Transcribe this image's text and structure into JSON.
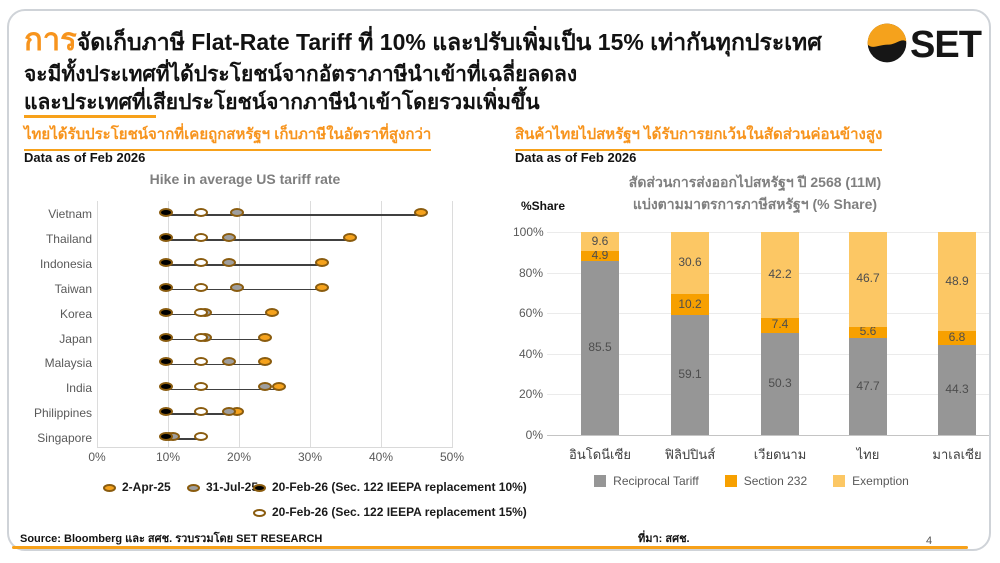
{
  "header": {
    "title_prefix": "การ",
    "title_rest": "จัดเก็บภาษี Flat-Rate Tariff ที่ 10% และปรับเพิ่มเป็น 15% เท่ากันทุกประเทศ",
    "subtitle_line1": "จะมีทั้งประเทศที่ได้ประโยชน์จากอัตราภาษีนำเข้าที่เฉลี่ยลดลง",
    "subtitle_line2": "และประเทศที่เสียประโยชน์จากภาษีนำเข้าโดยรวมเพิ่มขึ้น",
    "logo_text": "SET"
  },
  "left_panel": {
    "header": "ไทยได้รับประโยชน์จากที่เคยถูกสหรัฐฯ เก็บภาษีในอัตราที่สูงกว่า",
    "data_as_of": "Data as of Feb 2026"
  },
  "right_panel": {
    "header": "สินค้าไทยไปสหรัฐฯ ได้รับการยกเว้นในสัดส่วนค่อนข้างสูง",
    "data_as_of": "Data as of Feb 2026",
    "ylabel": "%Share"
  },
  "footer": {
    "source": "Source: Bloomberg และ สศช. รวบรวมโดย SET RESEARCH",
    "attribution": "ที่มา: สศช.",
    "page_number": "4"
  },
  "colors": {
    "accent_orange": "#F7941D",
    "underline_orange": "#F7A11A",
    "dot_border_brown": "#8A5C0F",
    "grid_gray": "#dcdcdc",
    "logo_black": "#161616"
  },
  "chart_data": [
    {
      "type": "scatter",
      "subtype": "dot-plot",
      "title": "Hike in average US tariff rate",
      "categories": [
        "Vietnam",
        "Thailand",
        "Indonesia",
        "Taiwan",
        "Korea",
        "Japan",
        "Malaysia",
        "India",
        "Philippines",
        "Singapore"
      ],
      "series": [
        {
          "name": "2-Apr-25",
          "color": "#F5A21C",
          "values": [
            46,
            36,
            32,
            32,
            25,
            24,
            24,
            26,
            20,
            10.5
          ]
        },
        {
          "name": "31-Jul-25",
          "color": "#9E9E9E",
          "values": [
            20,
            19,
            19,
            20,
            15.5,
            15.5,
            19,
            24,
            19,
            11
          ]
        },
        {
          "name": "20-Feb-26 (Sec. 122 IEEPA replacement 10%)",
          "color": "#000000",
          "values": [
            10,
            10,
            10,
            10,
            10,
            10,
            10,
            10,
            10,
            10
          ]
        },
        {
          "name": "20-Feb-26 (Sec. 122 IEEPA replacement 15%)",
          "color": "#FFFFFF",
          "values": [
            15,
            15,
            15,
            15,
            15,
            15,
            15,
            15,
            15,
            15
          ]
        }
      ],
      "xlim": [
        0,
        50
      ],
      "x_tick_labels": [
        "0%",
        "10%",
        "20%",
        "30%",
        "40%",
        "50%"
      ],
      "grid": "vertical",
      "legend_position": "bottom"
    },
    {
      "type": "bar",
      "stacked": true,
      "title_line1": "สัดส่วนการส่งออกไปสหรัฐฯ ปี 2568 (11M)",
      "title_line2": "แบ่งตามมาตรการภาษีสหรัฐฯ (% Share)",
      "ylabel": "%Share",
      "categories": [
        "อินโดนีเซีย",
        "ฟิลิปปินส์",
        "เวียดนาม",
        "ไทย",
        "มาเลเซีย"
      ],
      "series": [
        {
          "name": "Reciprocal Tariff",
          "color": "#969696",
          "values": [
            85.5,
            59.1,
            50.3,
            47.7,
            44.3
          ]
        },
        {
          "name": "Section 232",
          "color": "#F7A000",
          "values": [
            4.9,
            10.2,
            7.4,
            5.6,
            6.8
          ]
        },
        {
          "name": "Exemption",
          "color": "#FCC764",
          "values": [
            9.6,
            30.6,
            42.2,
            46.7,
            48.9
          ]
        }
      ],
      "ylim": [
        0,
        100
      ],
      "y_tick_labels": [
        "0%",
        "20%",
        "40%",
        "60%",
        "80%",
        "100%"
      ],
      "grid": "horizontal",
      "legend_position": "bottom"
    }
  ]
}
